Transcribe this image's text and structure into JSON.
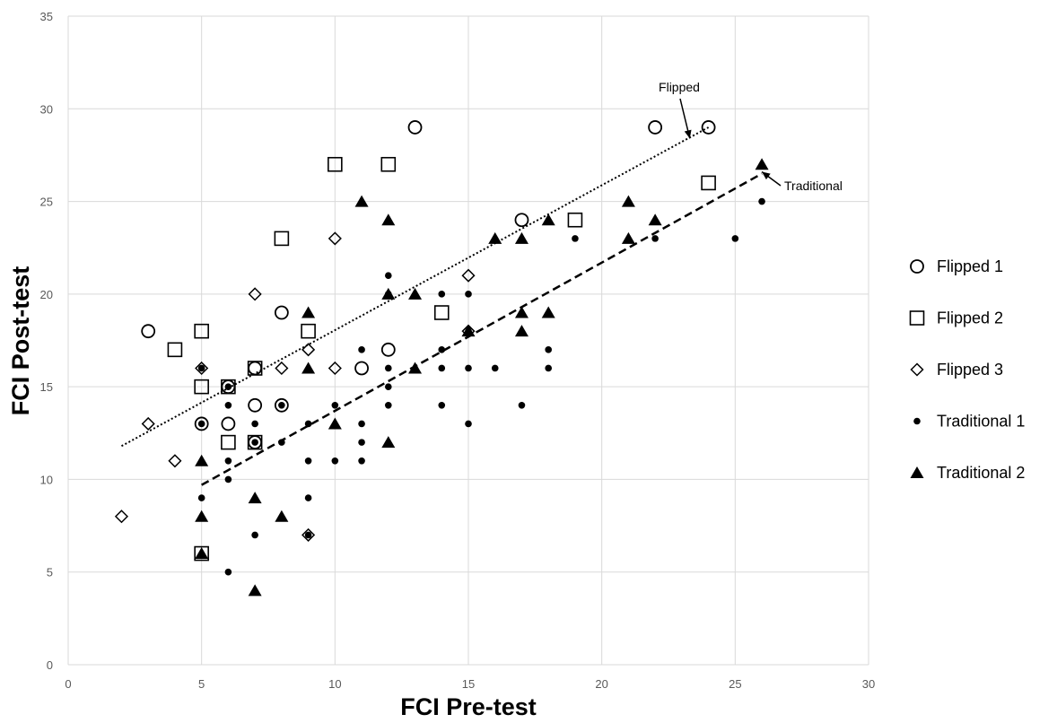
{
  "chart_data": {
    "type": "scatter",
    "xlabel": "FCI Pre-test",
    "ylabel": "FCI Post-test",
    "xlim": [
      0,
      30
    ],
    "ylim": [
      0,
      35
    ],
    "x_ticks": [
      0,
      5,
      10,
      15,
      20,
      25,
      30
    ],
    "y_ticks": [
      0,
      5,
      10,
      15,
      20,
      25,
      30,
      35
    ],
    "grid": true,
    "legend_position": "right",
    "series": [
      {
        "name": "Flipped 1",
        "marker": "circle-open",
        "points": [
          [
            3,
            18
          ],
          [
            5,
            13
          ],
          [
            6,
            15
          ],
          [
            6,
            13
          ],
          [
            7,
            16
          ],
          [
            7,
            14
          ],
          [
            7,
            12
          ],
          [
            8,
            19
          ],
          [
            8,
            14
          ],
          [
            11,
            16
          ],
          [
            12,
            17
          ],
          [
            13,
            29
          ],
          [
            17,
            24
          ],
          [
            22,
            29
          ],
          [
            24,
            29
          ]
        ]
      },
      {
        "name": "Flipped 2",
        "marker": "square-open",
        "points": [
          [
            4,
            17
          ],
          [
            5,
            18
          ],
          [
            5,
            15
          ],
          [
            5,
            6
          ],
          [
            6,
            15
          ],
          [
            6,
            12
          ],
          [
            7,
            16
          ],
          [
            7,
            12
          ],
          [
            8,
            23
          ],
          [
            9,
            18
          ],
          [
            10,
            27
          ],
          [
            12,
            27
          ],
          [
            14,
            19
          ],
          [
            19,
            24
          ],
          [
            24,
            26
          ]
        ]
      },
      {
        "name": "Flipped 3",
        "marker": "diamond-open",
        "points": [
          [
            2,
            8
          ],
          [
            3,
            13
          ],
          [
            4,
            11
          ],
          [
            5,
            16
          ],
          [
            7,
            20
          ],
          [
            8,
            16
          ],
          [
            9,
            17
          ],
          [
            9,
            7
          ],
          [
            10,
            23
          ],
          [
            10,
            16
          ],
          [
            15,
            21
          ],
          [
            15,
            18
          ]
        ]
      },
      {
        "name": "Traditional 1",
        "marker": "dot",
        "points": [
          [
            5,
            16
          ],
          [
            5,
            13
          ],
          [
            5,
            9
          ],
          [
            6,
            15
          ],
          [
            6,
            14
          ],
          [
            6,
            11
          ],
          [
            6,
            10
          ],
          [
            6,
            5
          ],
          [
            7,
            13
          ],
          [
            7,
            12
          ],
          [
            7,
            7
          ],
          [
            8,
            14
          ],
          [
            8,
            12
          ],
          [
            9,
            13
          ],
          [
            9,
            11
          ],
          [
            9,
            9
          ],
          [
            9,
            7
          ],
          [
            10,
            14
          ],
          [
            10,
            11
          ],
          [
            11,
            17
          ],
          [
            11,
            13
          ],
          [
            11,
            12
          ],
          [
            11,
            11
          ],
          [
            12,
            21
          ],
          [
            12,
            20
          ],
          [
            12,
            16
          ],
          [
            12,
            15
          ],
          [
            12,
            14
          ],
          [
            14,
            20
          ],
          [
            14,
            17
          ],
          [
            14,
            16
          ],
          [
            14,
            14
          ],
          [
            15,
            20
          ],
          [
            15,
            18
          ],
          [
            15,
            16
          ],
          [
            15,
            13
          ],
          [
            16,
            16
          ],
          [
            17,
            14
          ],
          [
            18,
            17
          ],
          [
            18,
            16
          ],
          [
            19,
            23
          ],
          [
            22,
            23
          ],
          [
            25,
            23
          ],
          [
            26,
            25
          ]
        ]
      },
      {
        "name": "Traditional 2",
        "marker": "triangle",
        "points": [
          [
            5,
            11
          ],
          [
            5,
            8
          ],
          [
            5,
            6
          ],
          [
            7,
            9
          ],
          [
            7,
            4
          ],
          [
            8,
            8
          ],
          [
            9,
            19
          ],
          [
            9,
            16
          ],
          [
            10,
            13
          ],
          [
            11,
            25
          ],
          [
            12,
            24
          ],
          [
            12,
            20
          ],
          [
            12,
            12
          ],
          [
            13,
            20
          ],
          [
            13,
            16
          ],
          [
            15,
            18
          ],
          [
            16,
            23
          ],
          [
            17,
            23
          ],
          [
            17,
            19
          ],
          [
            17,
            18
          ],
          [
            18,
            24
          ],
          [
            18,
            19
          ],
          [
            21,
            25
          ],
          [
            21,
            23
          ],
          [
            22,
            24
          ],
          [
            26,
            27
          ]
        ]
      }
    ],
    "trendlines": [
      {
        "name": "Flipped",
        "style": "dotted",
        "from": [
          2,
          11.8
        ],
        "to": [
          24,
          29
        ]
      },
      {
        "name": "Traditional",
        "style": "dashed",
        "from": [
          5,
          9.7
        ],
        "to": [
          26,
          26.5
        ]
      }
    ],
    "annotations": [
      {
        "text": "Flipped",
        "points_to": [
          23.3,
          28.4
        ]
      },
      {
        "text": "Traditional",
        "points_to": [
          26,
          26.6
        ]
      }
    ]
  }
}
